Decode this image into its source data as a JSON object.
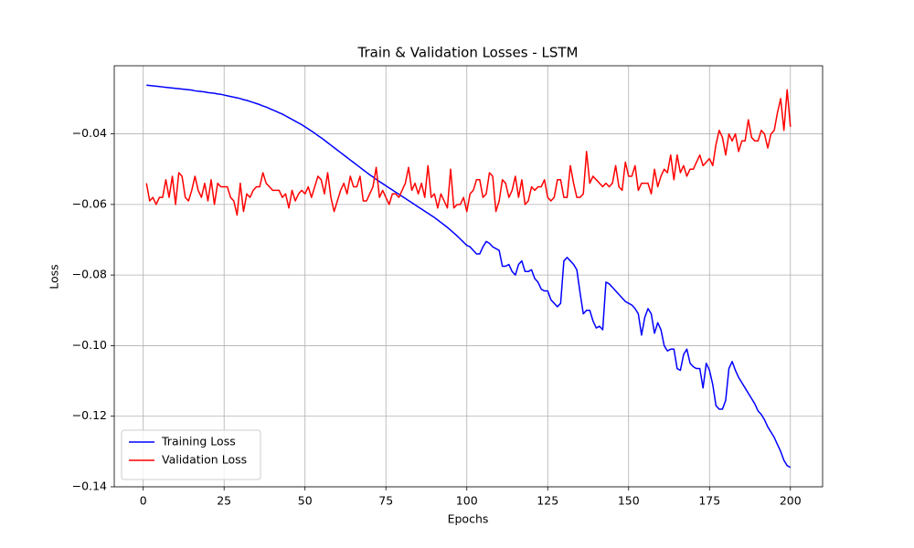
{
  "chart_data": {
    "type": "line",
    "title": "Train & Validation Losses - LSTM",
    "x_label": "Epochs",
    "y_label": "Loss",
    "x": [
      1,
      2,
      3,
      4,
      5,
      6,
      7,
      8,
      9,
      10,
      11,
      12,
      13,
      14,
      15,
      16,
      17,
      18,
      19,
      20,
      21,
      22,
      23,
      24,
      25,
      26,
      27,
      28,
      29,
      30,
      31,
      32,
      33,
      34,
      35,
      36,
      37,
      38,
      39,
      40,
      41,
      42,
      43,
      44,
      45,
      46,
      47,
      48,
      49,
      50,
      51,
      52,
      53,
      54,
      55,
      56,
      57,
      58,
      59,
      60,
      61,
      62,
      63,
      64,
      65,
      66,
      67,
      68,
      69,
      70,
      71,
      72,
      73,
      74,
      75,
      76,
      77,
      78,
      79,
      80,
      81,
      82,
      83,
      84,
      85,
      86,
      87,
      88,
      89,
      90,
      91,
      92,
      93,
      94,
      95,
      96,
      97,
      98,
      99,
      100,
      101,
      102,
      103,
      104,
      105,
      106,
      107,
      108,
      109,
      110,
      111,
      112,
      113,
      114,
      115,
      116,
      117,
      118,
      119,
      120,
      121,
      122,
      123,
      124,
      125,
      126,
      127,
      128,
      129,
      130,
      131,
      132,
      133,
      134,
      135,
      136,
      137,
      138,
      139,
      140,
      141,
      142,
      143,
      144,
      145,
      146,
      147,
      148,
      149,
      150,
      151,
      152,
      153,
      154,
      155,
      156,
      157,
      158,
      159,
      160,
      161,
      162,
      163,
      164,
      165,
      166,
      167,
      168,
      169,
      170,
      171,
      172,
      173,
      174,
      175,
      176,
      177,
      178,
      179,
      180,
      181,
      182,
      183,
      184,
      185,
      186,
      187,
      188,
      189,
      190,
      191,
      192,
      193,
      194,
      195,
      196,
      197,
      198,
      199,
      200
    ],
    "series": [
      {
        "name": "Training Loss",
        "color": "#0000ff",
        "values": [
          -0.0262,
          -0.0263,
          -0.0264,
          -0.0265,
          -0.0266,
          -0.0267,
          -0.0268,
          -0.0269,
          -0.027,
          -0.0271,
          -0.0272,
          -0.0273,
          -0.0274,
          -0.0275,
          -0.0276,
          -0.0278,
          -0.0279,
          -0.028,
          -0.0281,
          -0.0283,
          -0.0284,
          -0.0285,
          -0.0287,
          -0.0288,
          -0.029,
          -0.0292,
          -0.0294,
          -0.0296,
          -0.0298,
          -0.03,
          -0.0303,
          -0.0305,
          -0.0308,
          -0.0311,
          -0.0314,
          -0.0317,
          -0.0321,
          -0.0324,
          -0.0328,
          -0.0332,
          -0.0336,
          -0.034,
          -0.0344,
          -0.0349,
          -0.0354,
          -0.0359,
          -0.0364,
          -0.0369,
          -0.0374,
          -0.038,
          -0.0386,
          -0.0392,
          -0.0398,
          -0.0405,
          -0.0411,
          -0.0418,
          -0.0425,
          -0.0432,
          -0.0439,
          -0.0446,
          -0.0453,
          -0.046,
          -0.0467,
          -0.0474,
          -0.0481,
          -0.0488,
          -0.0495,
          -0.0502,
          -0.0509,
          -0.0516,
          -0.0522,
          -0.0529,
          -0.0535,
          -0.0541,
          -0.0547,
          -0.0553,
          -0.0559,
          -0.0565,
          -0.0571,
          -0.0577,
          -0.0583,
          -0.0589,
          -0.0595,
          -0.0601,
          -0.0607,
          -0.0613,
          -0.0619,
          -0.0625,
          -0.0631,
          -0.0637,
          -0.0644,
          -0.0651,
          -0.0658,
          -0.0665,
          -0.0673,
          -0.0681,
          -0.0689,
          -0.0698,
          -0.0707,
          -0.0716,
          -0.072,
          -0.073,
          -0.074,
          -0.074,
          -0.072,
          -0.0705,
          -0.071,
          -0.072,
          -0.0725,
          -0.073,
          -0.0775,
          -0.0775,
          -0.077,
          -0.079,
          -0.08,
          -0.077,
          -0.076,
          -0.079,
          -0.079,
          -0.0785,
          -0.081,
          -0.082,
          -0.084,
          -0.0845,
          -0.0845,
          -0.087,
          -0.088,
          -0.089,
          -0.088,
          -0.076,
          -0.075,
          -0.076,
          -0.077,
          -0.0785,
          -0.085,
          -0.091,
          -0.09,
          -0.09,
          -0.093,
          -0.095,
          -0.0945,
          -0.0955,
          -0.082,
          -0.0825,
          -0.0835,
          -0.0845,
          -0.0855,
          -0.0865,
          -0.0875,
          -0.088,
          -0.0885,
          -0.0895,
          -0.091,
          -0.097,
          -0.092,
          -0.0895,
          -0.091,
          -0.0965,
          -0.0935,
          -0.0955,
          -0.1,
          -0.1015,
          -0.101,
          -0.101,
          -0.1065,
          -0.107,
          -0.1025,
          -0.101,
          -0.105,
          -0.106,
          -0.1065,
          -0.1065,
          -0.112,
          -0.105,
          -0.107,
          -0.111,
          -0.117,
          -0.118,
          -0.118,
          -0.1155,
          -0.1065,
          -0.1045,
          -0.107,
          -0.109,
          -0.1105,
          -0.112,
          -0.1135,
          -0.115,
          -0.1165,
          -0.1185,
          -0.1195,
          -0.121,
          -0.123,
          -0.1245,
          -0.126,
          -0.128,
          -0.13,
          -0.1325,
          -0.134,
          -0.1345
        ]
      },
      {
        "name": "Validation Loss",
        "color": "#ff0000",
        "values": [
          -0.054,
          -0.059,
          -0.058,
          -0.06,
          -0.058,
          -0.058,
          -0.053,
          -0.058,
          -0.052,
          -0.06,
          -0.051,
          -0.052,
          -0.058,
          -0.059,
          -0.056,
          -0.052,
          -0.056,
          -0.058,
          -0.054,
          -0.059,
          -0.053,
          -0.06,
          -0.054,
          -0.055,
          -0.055,
          -0.055,
          -0.058,
          -0.059,
          -0.063,
          -0.054,
          -0.062,
          -0.057,
          -0.058,
          -0.056,
          -0.055,
          -0.055,
          -0.051,
          -0.054,
          -0.055,
          -0.056,
          -0.056,
          -0.056,
          -0.058,
          -0.057,
          -0.061,
          -0.056,
          -0.059,
          -0.057,
          -0.056,
          -0.057,
          -0.055,
          -0.058,
          -0.055,
          -0.052,
          -0.053,
          -0.057,
          -0.051,
          -0.058,
          -0.062,
          -0.059,
          -0.056,
          -0.054,
          -0.057,
          -0.052,
          -0.055,
          -0.055,
          -0.052,
          -0.059,
          -0.059,
          -0.057,
          -0.055,
          -0.0495,
          -0.058,
          -0.056,
          -0.058,
          -0.06,
          -0.057,
          -0.057,
          -0.058,
          -0.056,
          -0.054,
          -0.0495,
          -0.056,
          -0.054,
          -0.057,
          -0.054,
          -0.058,
          -0.049,
          -0.058,
          -0.057,
          -0.061,
          -0.057,
          -0.059,
          -0.061,
          -0.05,
          -0.061,
          -0.06,
          -0.06,
          -0.058,
          -0.062,
          -0.057,
          -0.056,
          -0.053,
          -0.053,
          -0.058,
          -0.057,
          -0.051,
          -0.052,
          -0.062,
          -0.059,
          -0.053,
          -0.054,
          -0.058,
          -0.056,
          -0.052,
          -0.058,
          -0.053,
          -0.06,
          -0.059,
          -0.055,
          -0.056,
          -0.055,
          -0.055,
          -0.053,
          -0.058,
          -0.059,
          -0.058,
          -0.053,
          -0.053,
          -0.058,
          -0.058,
          -0.049,
          -0.054,
          -0.058,
          -0.058,
          -0.057,
          -0.045,
          -0.054,
          -0.052,
          -0.053,
          -0.054,
          -0.055,
          -0.054,
          -0.055,
          -0.054,
          -0.049,
          -0.055,
          -0.056,
          -0.048,
          -0.052,
          -0.052,
          -0.049,
          -0.056,
          -0.054,
          -0.054,
          -0.054,
          -0.057,
          -0.05,
          -0.055,
          -0.052,
          -0.05,
          -0.051,
          -0.046,
          -0.053,
          -0.046,
          -0.051,
          -0.049,
          -0.052,
          -0.05,
          -0.05,
          -0.048,
          -0.046,
          -0.049,
          -0.048,
          -0.047,
          -0.049,
          -0.043,
          -0.039,
          -0.041,
          -0.046,
          -0.04,
          -0.042,
          -0.04,
          -0.045,
          -0.042,
          -0.042,
          -0.036,
          -0.041,
          -0.042,
          -0.042,
          -0.039,
          -0.04,
          -0.044,
          -0.04,
          -0.039,
          -0.034,
          -0.03,
          -0.039,
          -0.0275,
          -0.038
        ]
      }
    ],
    "xlim": [
      -8.95,
      209.95
    ],
    "xticks": [
      0,
      25,
      50,
      75,
      100,
      125,
      150,
      175,
      200
    ],
    "ylim": [
      -0.14,
      -0.0207
    ],
    "yticks": [
      {
        "value": -0.14,
        "label": "−0.14"
      },
      {
        "value": -0.12,
        "label": "−0.12"
      },
      {
        "value": -0.1,
        "label": "−0.10"
      },
      {
        "value": -0.08,
        "label": "−0.08"
      },
      {
        "value": -0.06,
        "label": "−0.06"
      },
      {
        "value": -0.04,
        "label": "−0.04"
      }
    ],
    "grid": true,
    "legend": "lower left"
  }
}
